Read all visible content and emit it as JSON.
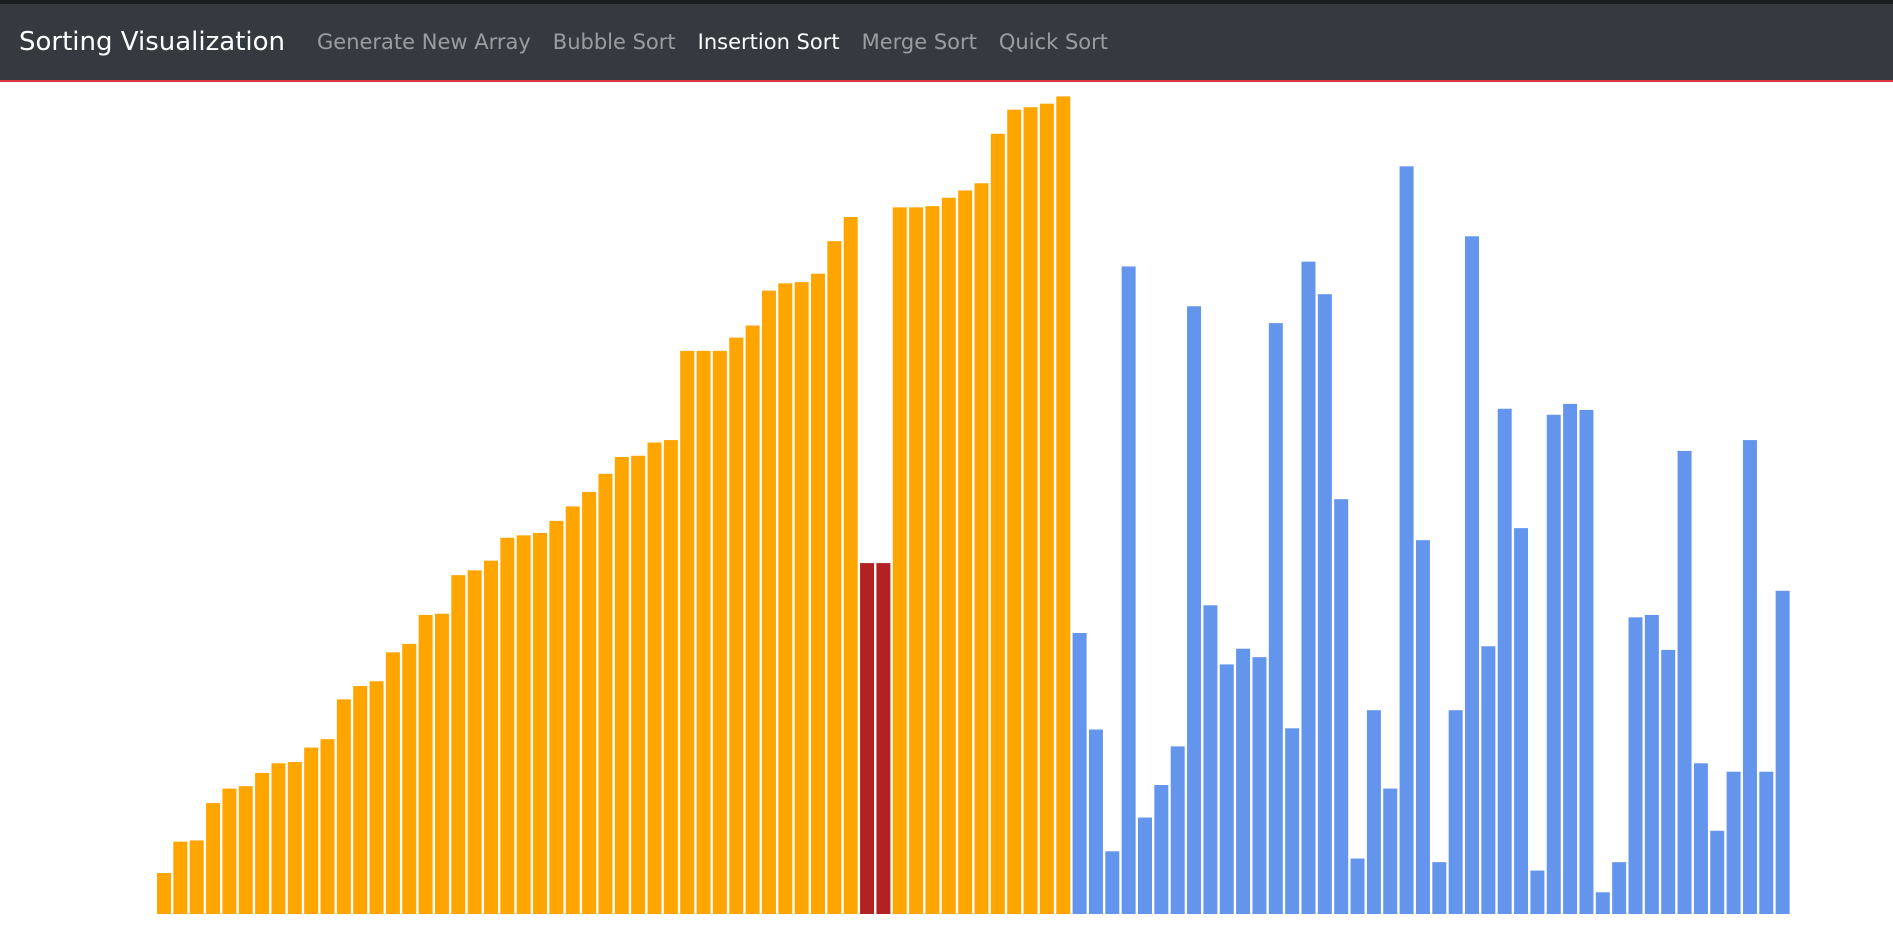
{
  "navbar": {
    "brand": "Sorting Visualization",
    "items": [
      {
        "label": "Generate New Array",
        "active": false
      },
      {
        "label": "Bubble Sort",
        "active": false
      },
      {
        "label": "Insertion Sort",
        "active": true
      },
      {
        "label": "Merge Sort",
        "active": false
      },
      {
        "label": "Quick Sort",
        "active": false
      }
    ]
  },
  "colors": {
    "sorted": "#ffa500",
    "comparing": "#b22222",
    "unsorted": "#6495ed",
    "navbar": "#343a40",
    "accent_border": "#dc3545"
  },
  "chart_data": {
    "type": "bar",
    "ylim": [
      0,
      680
    ],
    "values": [
      34,
      60,
      61,
      92,
      104,
      106,
      117,
      125,
      126,
      138,
      145,
      178,
      189,
      193,
      217,
      224,
      248,
      249,
      281,
      285,
      293,
      312,
      314,
      316,
      326,
      338,
      350,
      365,
      379,
      380,
      391,
      393,
      467,
      467,
      467,
      478,
      488,
      517,
      523,
      524,
      531,
      558,
      578,
      291,
      291,
      586,
      586,
      587,
      594,
      600,
      606,
      647,
      667,
      669,
      672,
      678,
      233,
      153,
      52,
      537,
      80,
      107,
      139,
      504,
      256,
      207,
      220,
      213,
      490,
      154,
      541,
      514,
      344,
      46,
      169,
      104,
      620,
      310,
      43,
      169,
      562,
      222,
      419,
      320,
      36,
      414,
      423,
      418,
      18,
      43,
      246,
      248,
      219,
      384,
      125,
      69,
      118,
      393,
      118,
      268
    ],
    "states": [
      "s",
      "s",
      "s",
      "s",
      "s",
      "s",
      "s",
      "s",
      "s",
      "s",
      "s",
      "s",
      "s",
      "s",
      "s",
      "s",
      "s",
      "s",
      "s",
      "s",
      "s",
      "s",
      "s",
      "s",
      "s",
      "s",
      "s",
      "s",
      "s",
      "s",
      "s",
      "s",
      "s",
      "s",
      "s",
      "s",
      "s",
      "s",
      "s",
      "s",
      "s",
      "s",
      "s",
      "c",
      "c",
      "s",
      "s",
      "s",
      "s",
      "s",
      "s",
      "s",
      "s",
      "s",
      "s",
      "s",
      "u",
      "u",
      "u",
      "u",
      "u",
      "u",
      "u",
      "u",
      "u",
      "u",
      "u",
      "u",
      "u",
      "u",
      "u",
      "u",
      "u",
      "u",
      "u",
      "u",
      "u",
      "u",
      "u",
      "u",
      "u",
      "u",
      "u",
      "u",
      "u",
      "u",
      "u",
      "u",
      "u",
      "u",
      "u",
      "u",
      "u",
      "u",
      "u",
      "u",
      "u",
      "u",
      "u",
      "u"
    ]
  }
}
